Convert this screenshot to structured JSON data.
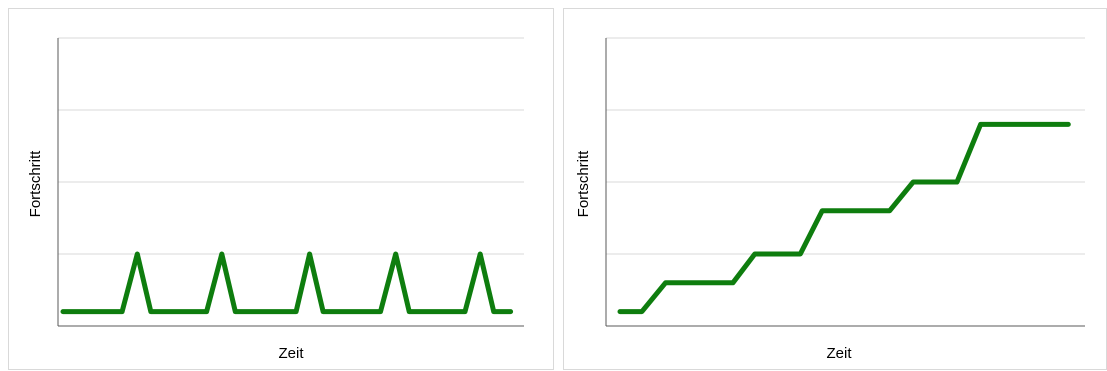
{
  "chart_data": [
    {
      "type": "line",
      "xlabel": "Zeit",
      "ylabel": "Fortschritt",
      "ylim": [
        0,
        4
      ],
      "xlim": [
        0,
        27
      ],
      "grid": true,
      "series": [
        {
          "x": [
            0,
            3.5,
            4.4,
            5.2,
            8.5,
            9.4,
            10.2,
            13.8,
            14.6,
            15.4,
            18.8,
            19.7,
            20.5,
            23.8,
            24.7,
            25.5,
            26.5
          ],
          "values": [
            0.2,
            0.2,
            1,
            0.2,
            0.2,
            1,
            0.2,
            0.2,
            1,
            0.2,
            0.2,
            1,
            0.2,
            0.2,
            1,
            0.2,
            0.2
          ],
          "color": "#0e7d0e"
        }
      ]
    },
    {
      "type": "line",
      "xlabel": "Zeit",
      "ylabel": "Fortschritt",
      "ylim": [
        0,
        4
      ],
      "xlim": [
        0,
        27
      ],
      "grid": true,
      "series": [
        {
          "x": [
            0,
            1.3,
            2.7,
            6.7,
            8.0,
            10.7,
            12.0,
            16.0,
            17.4,
            20.0,
            21.4,
            24.0,
            26.6
          ],
          "values": [
            0.2,
            0.2,
            0.6,
            0.6,
            1.0,
            1.0,
            1.6,
            1.6,
            2.0,
            2.0,
            2.8,
            2.8,
            2.8
          ],
          "color": "#0e7d0e"
        }
      ]
    }
  ]
}
